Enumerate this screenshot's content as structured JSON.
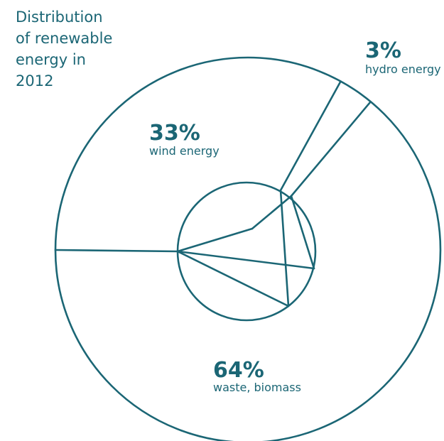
{
  "chart_data": {
    "type": "pie",
    "title_lines": [
      "Distribution",
      "of renewable",
      "energy in",
      "2012"
    ],
    "slices": [
      {
        "label": "wind energy",
        "percent_text": "33%",
        "value": 33
      },
      {
        "label": "hydro energy",
        "percent_text": "3%",
        "value": 3
      },
      {
        "label": "waste, biomass",
        "percent_text": "64%",
        "value": 64
      }
    ],
    "color": "#1b6675"
  }
}
